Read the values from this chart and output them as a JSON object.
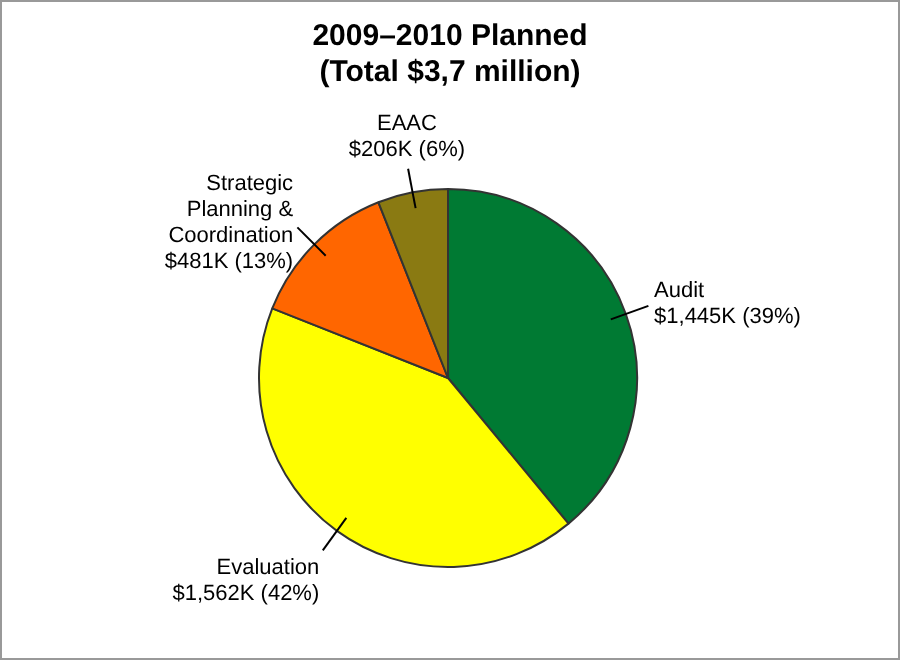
{
  "chart_data": {
    "type": "pie",
    "title": "2009–2010 Planned\n(Total $3,7 million)",
    "categories": [
      "Audit",
      "Evaluation",
      "Strategic Planning & Coordination",
      "EAAC"
    ],
    "values": [
      39,
      42,
      13,
      6
    ],
    "colors": [
      "#007a33",
      "#ffff00",
      "#ff6600",
      "#8a7a12"
    ],
    "value_labels": [
      "$1,445K (39%)",
      "$1,562K (42%)",
      "$481K (13%)",
      "$206K (6%)"
    ],
    "legend": false
  }
}
